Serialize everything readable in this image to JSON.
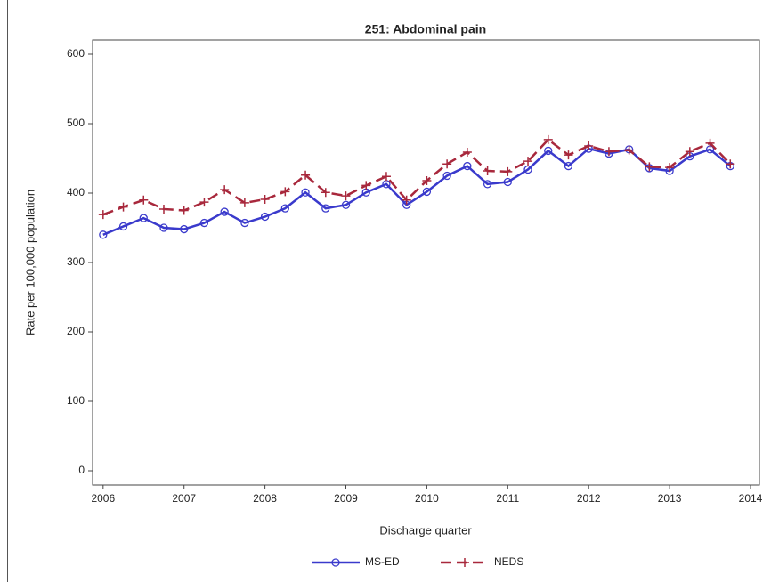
{
  "chart_data": {
    "type": "line",
    "title": "251: Abdominal pain",
    "xlabel": "Discharge quarter",
    "ylabel": "Rate per 100,000 population",
    "x": [
      2006,
      2006.25,
      2006.5,
      2006.75,
      2007,
      2007.25,
      2007.5,
      2007.75,
      2008,
      2008.25,
      2008.5,
      2008.75,
      2009,
      2009.25,
      2009.5,
      2009.75,
      2010,
      2010.25,
      2010.5,
      2010.75,
      2011,
      2011.25,
      2011.5,
      2011.75,
      2012,
      2012.25,
      2012.5,
      2012.75,
      2013,
      2013.25,
      2013.5,
      2013.75
    ],
    "series": [
      {
        "name": "MS-ED",
        "color": "#3a3acc",
        "marker": "circle",
        "dashed": false,
        "values": [
          340,
          352,
          364,
          350,
          348,
          357,
          373,
          357,
          366,
          378,
          401,
          378,
          383,
          401,
          413,
          383,
          402,
          425,
          439,
          413,
          416,
          434,
          461,
          439,
          464,
          457,
          463,
          436,
          432,
          453,
          463,
          439
        ]
      },
      {
        "name": "NEDS",
        "color": "#a8283c",
        "marker": "plus",
        "dashed": true,
        "values": [
          369,
          380,
          390,
          377,
          375,
          387,
          405,
          386,
          391,
          402,
          426,
          401,
          396,
          411,
          424,
          390,
          418,
          442,
          459,
          432,
          431,
          446,
          477,
          455,
          468,
          460,
          462,
          438,
          437,
          460,
          472,
          442
        ]
      }
    ],
    "xlim": [
      2005.87,
      2014.11
    ],
    "xticks": [
      2006,
      2007,
      2008,
      2009,
      2010,
      2011,
      2012,
      2013,
      2014
    ],
    "ylim": [
      -20.5,
      620.5
    ],
    "yticks": [
      0,
      100,
      200,
      300,
      400,
      500,
      600
    ],
    "grid": false,
    "legend": "bottom"
  }
}
